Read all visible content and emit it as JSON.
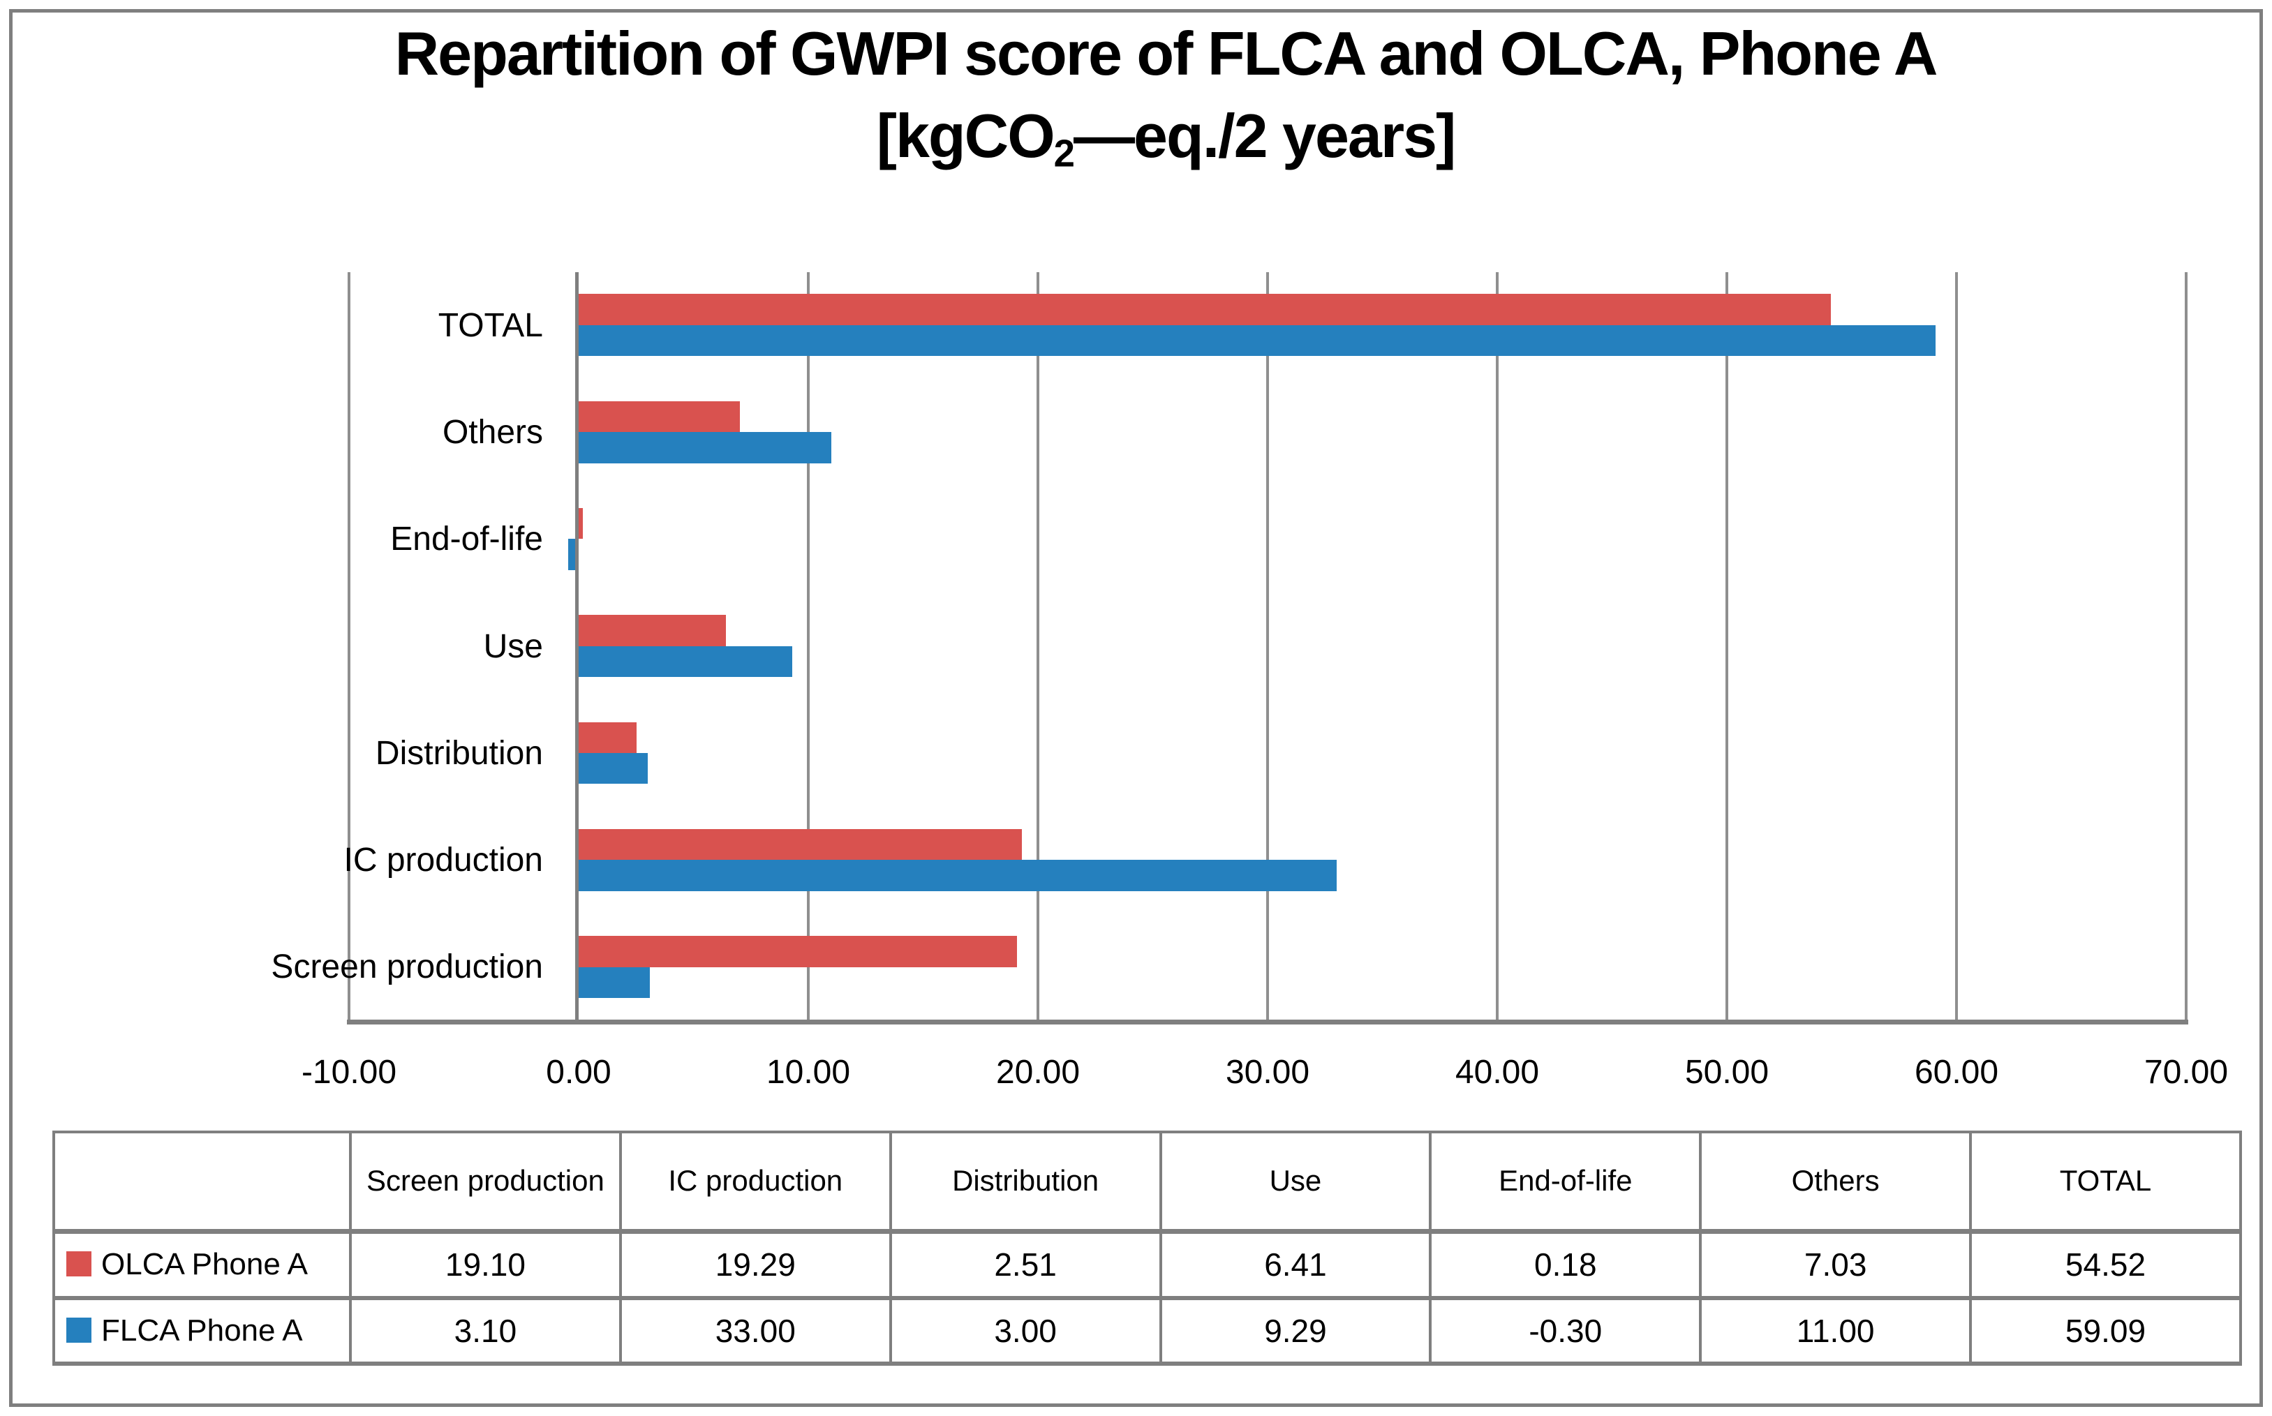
{
  "figure": {
    "background": "#FFFFFF",
    "border_color": "#7F7F7F"
  },
  "title": {
    "line1": "Repartition of GWPI score of FLCA and OLCA, Phone A",
    "line2_prefix": "[kgCO",
    "line2_subscript": "2",
    "line2_suffix": "—eq./2 years]"
  },
  "chart_data": {
    "type": "bar",
    "orientation": "horizontal-grouped",
    "title": "Repartition of GWPI score of FLCA and OLCA, Phone A [kgCO2—eq./2 years]",
    "categories": [
      "Screen production",
      "IC production",
      "Distribution",
      "Use",
      "End-of-life",
      "Others",
      "TOTAL"
    ],
    "category_axis_order_top_to_bottom": [
      "TOTAL",
      "Others",
      "End-of-life",
      "Use",
      "Distribution",
      "IC production",
      "Screen production"
    ],
    "series": [
      {
        "name": "OLCA Phone A",
        "color": "#D9524F",
        "values": [
          19.1,
          19.29,
          2.51,
          6.41,
          0.18,
          7.03,
          54.52
        ]
      },
      {
        "name": "FLCA Phone A",
        "color": "#2580BE",
        "values": [
          3.1,
          33.0,
          3.0,
          9.29,
          -0.3,
          11.0,
          59.09
        ]
      }
    ],
    "x_axis": {
      "min": -10,
      "max": 70,
      "tick_step": 10,
      "tick_labels": [
        "-10.00",
        "0.00",
        "10.00",
        "20.00",
        "30.00",
        "40.00",
        "50.00",
        "60.00",
        "70.00"
      ]
    },
    "gridlines": "vertical-major",
    "gridline_color": "#8F8F8F",
    "axis_line_color": "#7F7F7F",
    "legend_position": "table-below-with-swatches"
  },
  "table": {
    "columns": [
      "Screen production",
      "IC production",
      "Distribution",
      "Use",
      "End-of-life",
      "Others",
      "TOTAL"
    ],
    "rows": [
      {
        "label": "OLCA Phone A",
        "swatch_color": "#D9524F",
        "values": [
          "19.10",
          "19.29",
          "2.51",
          "6.41",
          "0.18",
          "7.03",
          "54.52"
        ]
      },
      {
        "label": "FLCA Phone A",
        "swatch_color": "#2580BE",
        "values": [
          "3.10",
          "33.00",
          "3.00",
          "9.29",
          "-0.30",
          "11.00",
          "59.09"
        ]
      }
    ]
  }
}
